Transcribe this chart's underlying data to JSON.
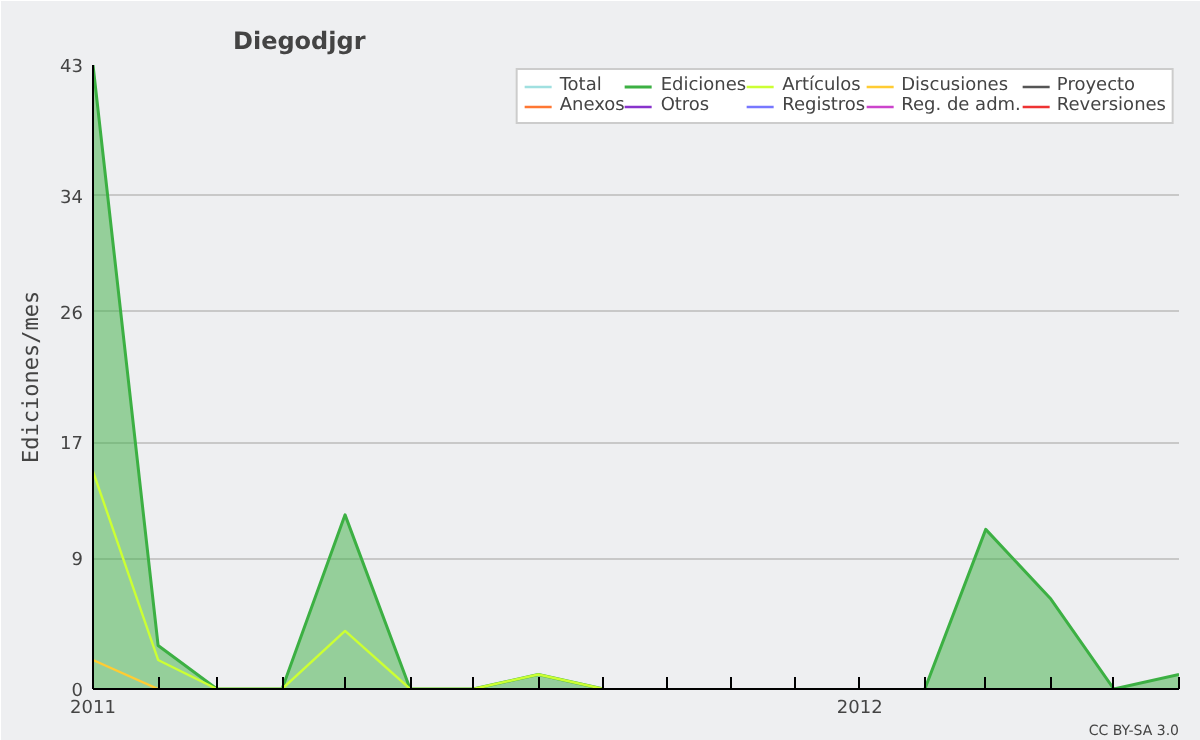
{
  "chart_data": {
    "type": "line",
    "title": "Diegodjgr",
    "ylabel": "Ediciones/mes",
    "x": [
      "2011-01",
      "2011-02",
      "2011-03",
      "2011-04",
      "2011-05",
      "2011-06",
      "2011-07",
      "2011-08",
      "2011-09",
      "2011-10",
      "2011-11",
      "2011-12",
      "2012-01",
      "2012-02",
      "2012-03",
      "2012-04",
      "2012-05",
      "2012-06"
    ],
    "series": [
      {
        "name": "Total",
        "color": "#a0e0e0",
        "values": [
          null,
          null,
          null,
          null,
          null,
          null,
          null,
          null,
          null,
          null,
          null,
          null,
          null,
          null,
          null,
          null,
          null,
          null
        ]
      },
      {
        "name": "Ediciones",
        "type": "area",
        "color": "#3cb043",
        "values": [
          43,
          3,
          0,
          0,
          12,
          0,
          0,
          1,
          0,
          null,
          null,
          null,
          null,
          0,
          11,
          6.2,
          0,
          1
        ]
      },
      {
        "name": "Artículos",
        "color": "#ccff33",
        "values": [
          15,
          2,
          0,
          0,
          4,
          0,
          0,
          1,
          0,
          null,
          null,
          null,
          null,
          null,
          null,
          null,
          null,
          null
        ]
      },
      {
        "name": "Discusiones",
        "color": "#ffcc33",
        "values": [
          2,
          0,
          null,
          null,
          null,
          null,
          null,
          null,
          null,
          null,
          null,
          null,
          null,
          null,
          null,
          null,
          null,
          null
        ]
      },
      {
        "name": "Proyecto",
        "color": "#555555",
        "values": [
          null,
          null,
          null,
          null,
          null,
          null,
          null,
          null,
          null,
          null,
          null,
          null,
          null,
          null,
          null,
          null,
          null,
          null
        ]
      },
      {
        "name": "Anexos",
        "color": "#ff7733",
        "values": [
          null,
          null,
          null,
          null,
          null,
          null,
          null,
          null,
          null,
          null,
          null,
          null,
          null,
          null,
          null,
          null,
          null,
          null
        ]
      },
      {
        "name": "Otros",
        "color": "#8833cc",
        "values": [
          null,
          null,
          null,
          null,
          null,
          null,
          null,
          null,
          null,
          null,
          null,
          null,
          null,
          null,
          null,
          null,
          null,
          null
        ]
      },
      {
        "name": "Registros",
        "color": "#7777ff",
        "values": [
          null,
          null,
          null,
          null,
          null,
          null,
          null,
          null,
          null,
          null,
          null,
          null,
          null,
          null,
          null,
          null,
          null,
          null
        ]
      },
      {
        "name": "Reg. de adm.",
        "color": "#cc44cc",
        "values": [
          null,
          null,
          null,
          null,
          null,
          null,
          null,
          null,
          null,
          null,
          null,
          null,
          null,
          null,
          null,
          null,
          null,
          null
        ]
      },
      {
        "name": "Reversiones",
        "color": "#ee3333",
        "values": [
          null,
          null,
          null,
          null,
          null,
          null,
          null,
          null,
          null,
          null,
          null,
          null,
          null,
          null,
          null,
          null,
          null,
          null
        ]
      }
    ],
    "xlim": [
      "2011-01",
      "2012-06"
    ],
    "xticks": [
      {
        "value": "2011-01",
        "label": "2011"
      },
      {
        "value": "2011-02",
        "label": null
      },
      {
        "value": "2011-03",
        "label": null
      },
      {
        "value": "2011-04",
        "label": null
      },
      {
        "value": "2011-05",
        "label": null
      },
      {
        "value": "2011-06",
        "label": null
      },
      {
        "value": "2011-07",
        "label": null
      },
      {
        "value": "2011-08",
        "label": null
      },
      {
        "value": "2011-09",
        "label": null
      },
      {
        "value": "2011-10",
        "label": null
      },
      {
        "value": "2011-11",
        "label": null
      },
      {
        "value": "2011-12",
        "label": null
      },
      {
        "value": "2012-01",
        "label": "2012"
      },
      {
        "value": "2012-02",
        "label": null
      },
      {
        "value": "2012-03",
        "label": null
      },
      {
        "value": "2012-04",
        "label": null
      },
      {
        "value": "2012-05",
        "label": null
      },
      {
        "value": "2012-06",
        "label": null
      }
    ],
    "ylim": [
      0,
      43
    ],
    "yticks": [
      0,
      9,
      17,
      26,
      34,
      43
    ],
    "grid": "y",
    "legend": "top right",
    "annotations": [
      "CC BY-SA 3.0"
    ]
  }
}
